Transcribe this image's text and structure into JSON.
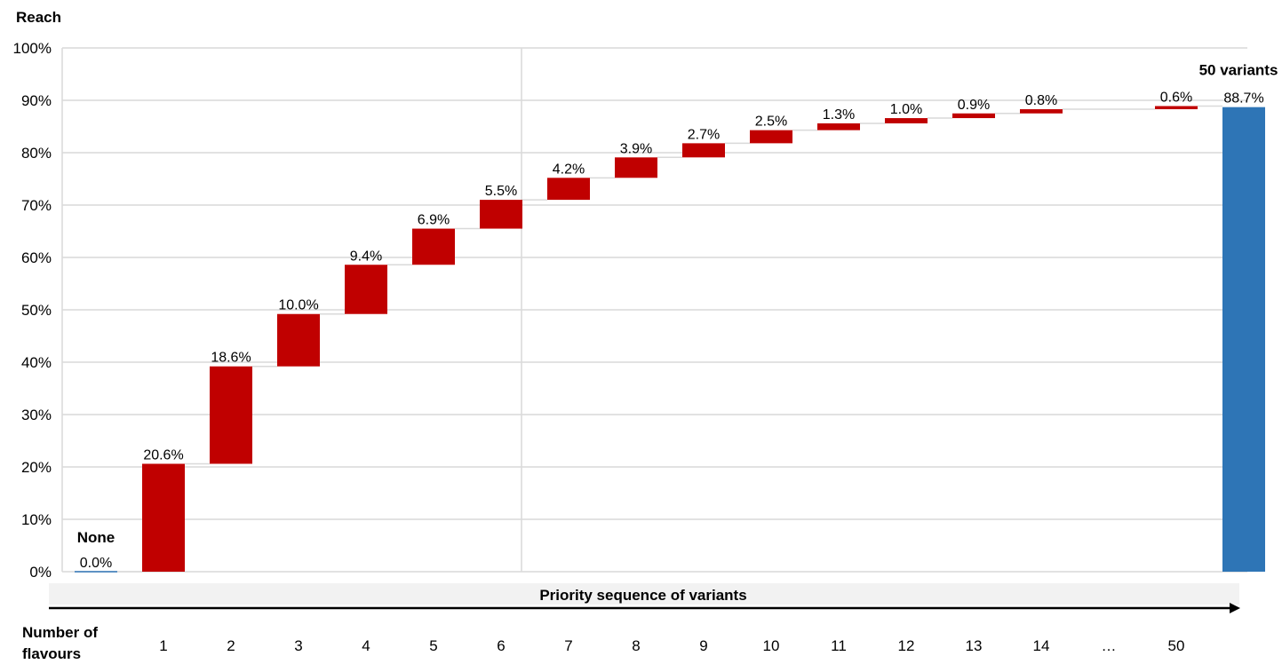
{
  "chart_data": {
    "type": "bar",
    "subtype": "waterfall",
    "ylabel": "Reach",
    "ylim": [
      0,
      100
    ],
    "y_ticks": [
      "0%",
      "10%",
      "20%",
      "30%",
      "40%",
      "50%",
      "60%",
      "70%",
      "80%",
      "90%",
      "100%"
    ],
    "x_title": "Number of\nflavours",
    "x_title_lines": [
      "Number of",
      "flavours"
    ],
    "sequence_label": "Priority sequence of variants",
    "start": {
      "category": "",
      "value": 0.0,
      "label": "0.0%",
      "annotation": "None"
    },
    "steps": [
      {
        "category": "1",
        "value": 20.6,
        "label": "20.6%"
      },
      {
        "category": "2",
        "value": 18.6,
        "label": "18.6%"
      },
      {
        "category": "3",
        "value": 10.0,
        "label": "10.0%"
      },
      {
        "category": "4",
        "value": 9.4,
        "label": "9.4%"
      },
      {
        "category": "5",
        "value": 6.9,
        "label": "6.9%"
      },
      {
        "category": "6",
        "value": 5.5,
        "label": "5.5%"
      },
      {
        "category": "7",
        "value": 4.2,
        "label": "4.2%"
      },
      {
        "category": "8",
        "value": 3.9,
        "label": "3.9%"
      },
      {
        "category": "9",
        "value": 2.7,
        "label": "2.7%"
      },
      {
        "category": "10",
        "value": 2.5,
        "label": "2.5%"
      },
      {
        "category": "11",
        "value": 1.3,
        "label": "1.3%"
      },
      {
        "category": "12",
        "value": 1.0,
        "label": "1.0%"
      },
      {
        "category": "13",
        "value": 0.9,
        "label": "0.9%"
      },
      {
        "category": "14",
        "value": 0.8,
        "label": "0.8%"
      },
      {
        "category": "…",
        "value": null,
        "label": ""
      },
      {
        "category": "50",
        "value": 0.6,
        "label": "0.6%"
      }
    ],
    "total": {
      "category": "",
      "value": 88.7,
      "label": "88.7%",
      "annotation": "50 variants"
    },
    "colors": {
      "step": "#c00000",
      "total": "#2e75b6",
      "grid": "#d9d9d9",
      "band": "#f2f2f2"
    }
  }
}
